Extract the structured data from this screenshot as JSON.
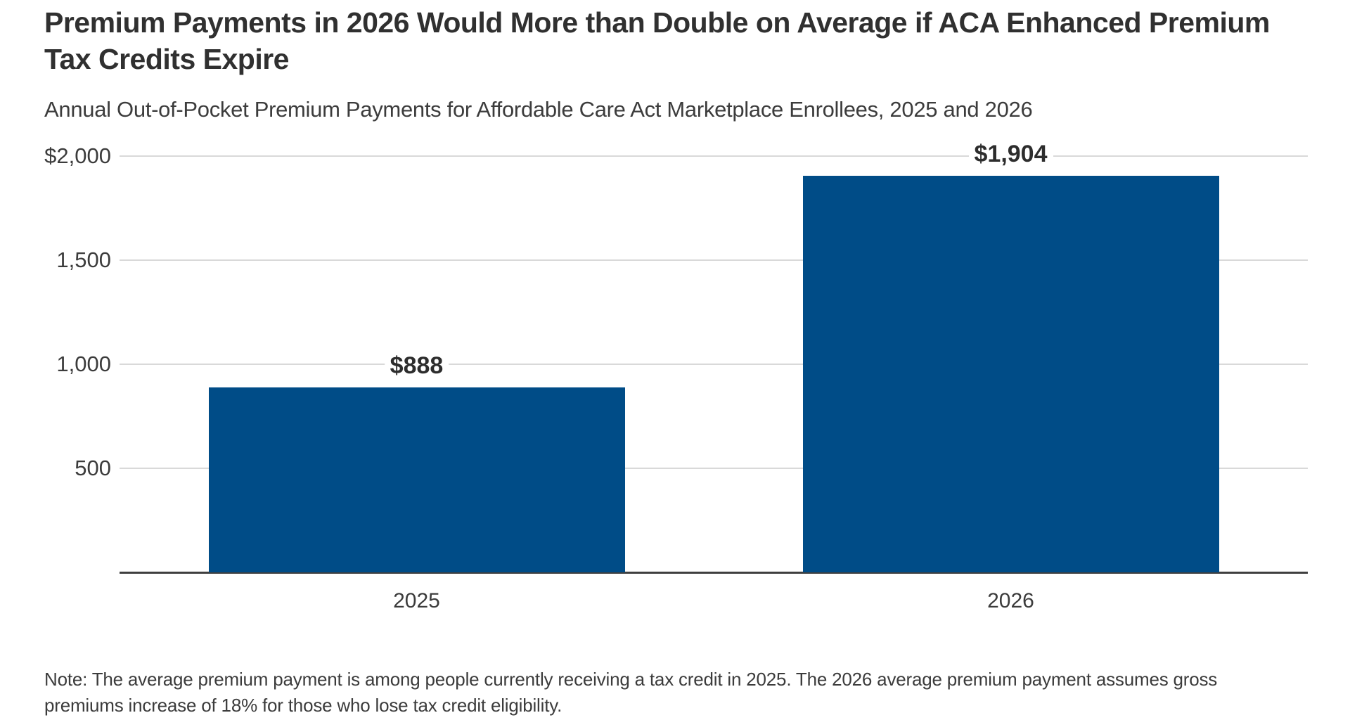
{
  "header": {
    "title_lines": [
      "Premium Payments in 2026 Would More than Double on Average if ACA Enhanced Premium",
      "Tax Credits Expire"
    ],
    "subtitle": "Annual Out-of-Pocket Premium Payments for Affordable Care Act Marketplace Enrollees, 2025 and 2026"
  },
  "footer": {
    "note_lines": [
      "Note: The average premium payment is among people currently receiving a tax credit in 2025. The 2026 average premium payment assumes gross",
      "premiums increase of 18% for those who lose tax credit eligibility."
    ]
  },
  "chart_data": {
    "type": "bar",
    "title": "Premium Payments in 2026 Would More than Double on Average if ACA Enhanced Premium Tax Credits Expire",
    "subtitle": "Annual Out-of-Pocket Premium Payments for Affordable Care Act Marketplace Enrollees, 2025 and 2026",
    "categories": [
      "2025",
      "2026"
    ],
    "values": [
      888,
      1904
    ],
    "value_labels": [
      "$888",
      "$1,904"
    ],
    "xlabel": "",
    "ylabel": "",
    "ylim": [
      0,
      2000
    ],
    "yticks": [
      {
        "value": 2000,
        "label": "$2,000"
      },
      {
        "value": 1500,
        "label": "1,500"
      },
      {
        "value": 1000,
        "label": "1,000"
      },
      {
        "value": 500,
        "label": "500"
      }
    ],
    "grid": true,
    "legend": false,
    "note": "Note: The average premium payment is among people currently receiving a tax credit in 2025. The 2026 average premium payment assumes gross premiums increase of 18% for those who lose tax credit eligibility."
  },
  "colors": {
    "bar": "#004C87",
    "title_text": "#303030",
    "body_text": "#3C3C3C",
    "gridline": "#D9D9D9",
    "axis_line": "#3F3F3F",
    "background": "#FFFFFF"
  }
}
